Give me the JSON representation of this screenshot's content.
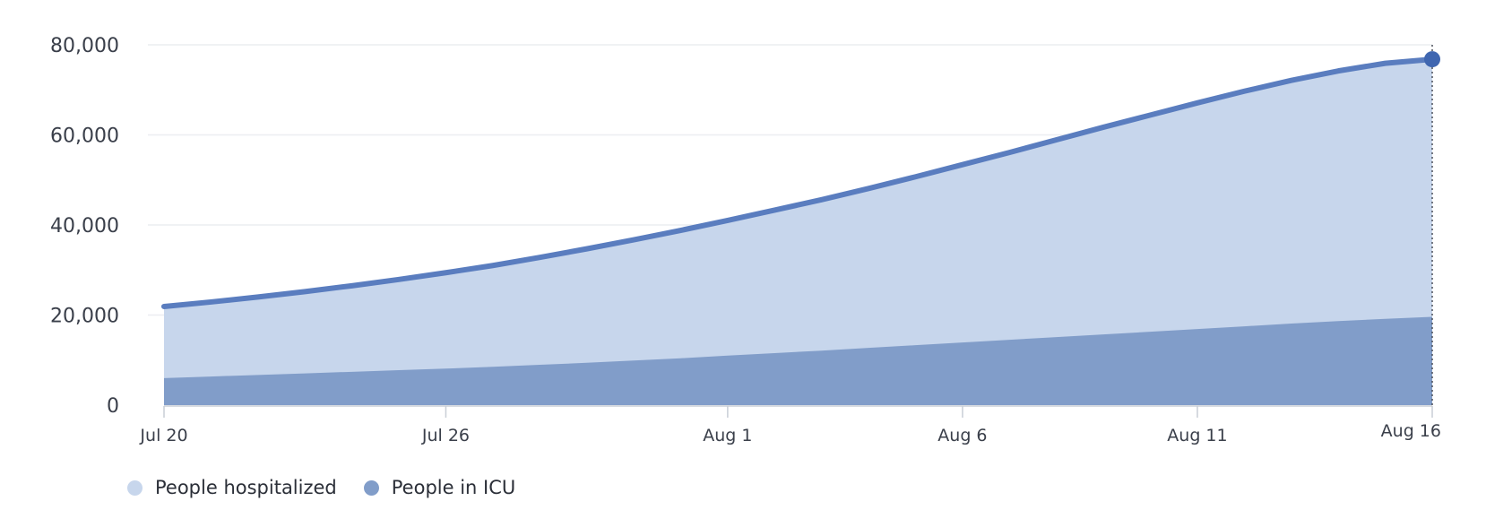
{
  "chart_data": {
    "type": "area",
    "stacked": false,
    "x": [
      "Jul 20",
      "Jul 21",
      "Jul 22",
      "Jul 23",
      "Jul 24",
      "Jul 25",
      "Jul 26",
      "Jul 27",
      "Jul 28",
      "Jul 29",
      "Jul 30",
      "Jul 31",
      "Aug 1",
      "Aug 2",
      "Aug 3",
      "Aug 4",
      "Aug 5",
      "Aug 6",
      "Aug 7",
      "Aug 8",
      "Aug 9",
      "Aug 10",
      "Aug 11",
      "Aug 12",
      "Aug 13",
      "Aug 14",
      "Aug 15",
      "Aug 16"
    ],
    "x_ticks": [
      "Jul 20",
      "Jul 26",
      "Aug 1",
      "Aug 6",
      "Aug 11",
      "Aug 16"
    ],
    "y_ticks": [
      "0",
      "20,000",
      "40,000",
      "60,000",
      "80,000"
    ],
    "ylim": [
      0,
      80000
    ],
    "grid": "horizontal",
    "legend_position": "bottom-left",
    "highlight_x": "Aug 16",
    "series": [
      {
        "name": "People hospitalized",
        "fill_color": "#c7d6ec",
        "line_color": "#5a7dbf",
        "legend_color": "#c7d6ec",
        "values": [
          21900,
          22900,
          24000,
          25200,
          26500,
          27900,
          29400,
          31000,
          32800,
          34700,
          36700,
          38800,
          41000,
          43300,
          45600,
          48100,
          50700,
          53400,
          56100,
          58900,
          61700,
          64400,
          67100,
          69700,
          72100,
          74200,
          75900,
          76800
        ]
      },
      {
        "name": "People in ICU",
        "fill_color": "#819dc9",
        "line_color": "#819dc9",
        "legend_color": "#819dc9",
        "values": [
          6000,
          6350,
          6700,
          7050,
          7400,
          7750,
          8100,
          8500,
          8950,
          9400,
          9900,
          10400,
          11000,
          11550,
          12100,
          12700,
          13300,
          13900,
          14500,
          15100,
          15700,
          16300,
          16900,
          17500,
          18100,
          18650,
          19150,
          19600
        ]
      }
    ]
  }
}
